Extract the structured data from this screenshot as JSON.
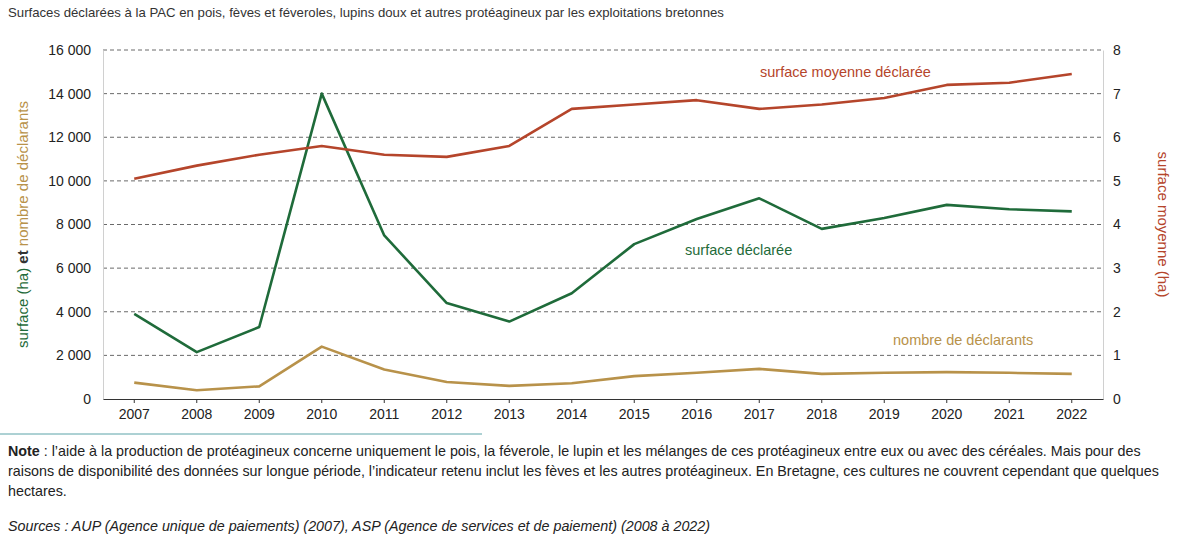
{
  "chart_data": {
    "type": "line",
    "title": "Surfaces déclarées à la PAC en pois, fèves et féveroles, lupins doux et autres protéagineux par les exploitations bretonnes",
    "categories": [
      "2007",
      "2008",
      "2009",
      "2010",
      "2011",
      "2012",
      "2013",
      "2014",
      "2015",
      "2016",
      "2017",
      "2018",
      "2019",
      "2020",
      "2021",
      "2022"
    ],
    "ylabel": [
      {
        "text": "surface (ha)",
        "color": "#1f6b3a"
      },
      {
        "text": "et",
        "color": "#333333"
      },
      {
        "text": "nombre de déclarants",
        "color": "#b8924a"
      }
    ],
    "y2label": "surface moyenne (ha)",
    "ylim": [
      0,
      16000
    ],
    "yticks": [
      0,
      {
        "value": 2000,
        "label": "2 000"
      },
      {
        "value": 4000,
        "label": "4 000"
      },
      {
        "value": 6000,
        "label": "6 000"
      },
      {
        "value": 8000,
        "label": "8 000"
      },
      {
        "value": 10000,
        "label": "10 000"
      },
      {
        "value": 12000,
        "label": "12 000"
      },
      {
        "value": 14000,
        "label": "14 000"
      },
      {
        "value": 16000,
        "label": "16 000"
      }
    ],
    "y2lim": [
      0,
      8
    ],
    "y2ticks": [
      0,
      1,
      2,
      3,
      4,
      5,
      6,
      7,
      8
    ],
    "grid": true,
    "series": [
      {
        "name": "surface déclarée",
        "color": "#1f6b3a",
        "values": [
          3900,
          2150,
          3300,
          14000,
          7500,
          4400,
          3550,
          4850,
          7100,
          8250,
          9200,
          7800,
          8300,
          8900,
          8700,
          8600
        ]
      },
      {
        "name": "nombre de déclarants",
        "color": "#b8924a",
        "values": [
          750,
          400,
          580,
          2400,
          1350,
          780,
          600,
          720,
          1050,
          1200,
          1380,
          1150,
          1200,
          1230,
          1200,
          1150
        ]
      },
      {
        "name": "surface moyenne déclarée",
        "color": "#b5452b",
        "axis": "y2",
        "values": [
          5.05,
          5.35,
          5.6,
          5.8,
          5.6,
          5.55,
          5.8,
          6.65,
          6.75,
          6.85,
          6.65,
          6.75,
          6.9,
          7.2,
          7.25,
          7.45
        ]
      }
    ],
    "note": {
      "label": "Note",
      "text": " : l’aide à la production de protéagineux concerne uniquement le pois, la féverole, le lupin et les mélanges de ces protéagineux entre eux ou avec des céréales. Mais pour des raisons de disponibilité des données sur longue période, l’indicateur retenu inclut les fèves et les autres protéagineux. En Bretagne, ces cultures ne couvrent cependant que quelques hectares."
    },
    "source": "Sources : AUP (Agence unique de paiements) (2007), ASP (Agence de services et de paiement) (2008 à 2022)"
  }
}
